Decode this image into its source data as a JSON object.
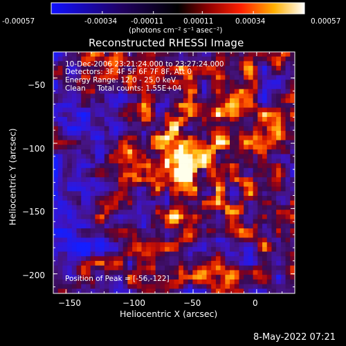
{
  "colorbar": {
    "ticks": [
      "-0.00057",
      "-0.00034",
      "-0.00011",
      "0.00011",
      "0.00034",
      "0.00057"
    ],
    "min": -0.00057,
    "max": 0.00057,
    "units_label": "(photons cm⁻² s⁻¹ asec⁻²)"
  },
  "chart_data": {
    "type": "heatmap",
    "title": "Reconstructed RHESSI Image",
    "xlabel": "Heliocentric X (arcsec)",
    "ylabel": "Heliocentric Y (arcsec)",
    "xlim": [
      -160,
      30
    ],
    "ylim": [
      -215,
      -30
    ],
    "xticks": [
      -150,
      -100,
      -50,
      0
    ],
    "yticks": [
      -50,
      -100,
      -150,
      -200
    ],
    "xtick_labels": [
      "−150",
      "−100",
      "−50",
      "0"
    ],
    "ytick_labels": [
      "−50",
      "−100",
      "−150",
      "−200"
    ],
    "peak": {
      "x": -56,
      "y": -122
    },
    "annotations": {
      "time": "10-Dec-2006 23:21:24.000 to 23:27:24.000",
      "detectors": "Detectors: 3F 4F 5F 6F 7F 8F, Att 0",
      "energy": "Energy Range: 12.0 - 25.0 keV",
      "clean": "Clean     Total counts: 1.55E+04",
      "peak_label": "Position of Peak = [-56,-122]"
    },
    "colormap_stops": [
      "#0000ff",
      "#000000",
      "#ff0000",
      "#ffff00",
      "#ffffff"
    ]
  },
  "footer": {
    "timestamp": "8-May-2022 07:21"
  }
}
